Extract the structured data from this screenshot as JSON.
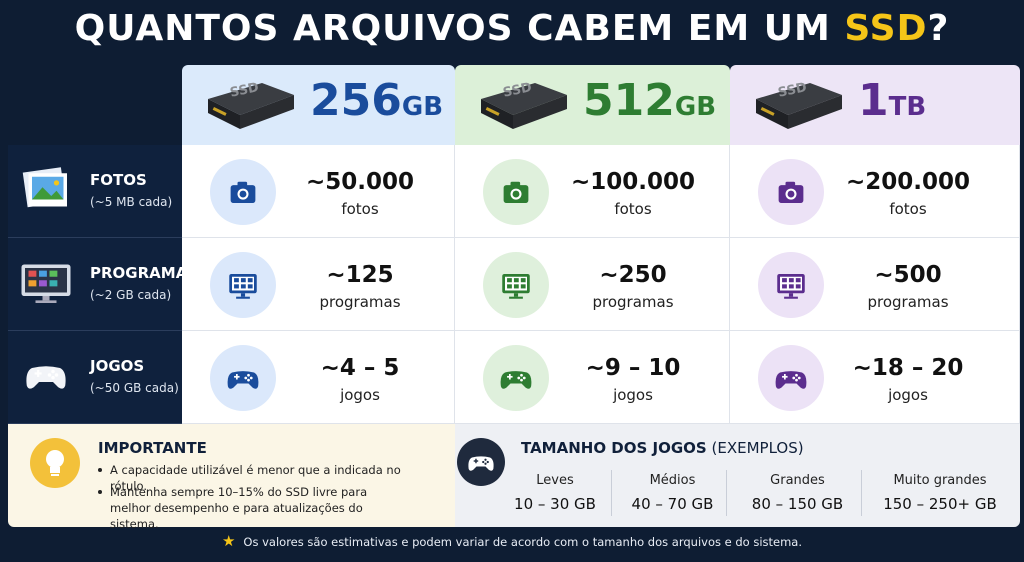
{
  "title": {
    "prefix": "QUANTOS ARQUIVOS CABEM EM UM",
    "highlight": "SSD",
    "suffix": "?"
  },
  "drive_label": "SSD",
  "columns": [
    {
      "number": "256",
      "unit": "GB"
    },
    {
      "number": "512",
      "unit": "GB"
    },
    {
      "number": "1",
      "unit": "TB"
    }
  ],
  "rows": [
    {
      "label": "FOTOS",
      "note": "(~5 MB cada)",
      "cells": [
        {
          "amount": "~50.000",
          "unit": "fotos"
        },
        {
          "amount": "~100.000",
          "unit": "fotos"
        },
        {
          "amount": "~200.000",
          "unit": "fotos"
        }
      ]
    },
    {
      "label": "PROGRAMAS",
      "note": "(~2 GB cada)",
      "cells": [
        {
          "amount": "~125",
          "unit": "programas"
        },
        {
          "amount": "~250",
          "unit": "programas"
        },
        {
          "amount": "~500",
          "unit": "programas"
        }
      ]
    },
    {
      "label": "JOGOS",
      "note": "(~50 GB cada)",
      "cells": [
        {
          "amount": "~4 – 5",
          "unit": "jogos"
        },
        {
          "amount": "~9 – 10",
          "unit": "jogos"
        },
        {
          "amount": "~18 – 20",
          "unit": "jogos"
        }
      ]
    }
  ],
  "important": {
    "title": "IMPORTANTE",
    "items": [
      "A capacidade utilizável é menor que a indicada no rótulo.",
      "Mantenha sempre 10–15% do SSD livre para melhor desempenho e para atualizações do sistema."
    ]
  },
  "game_sizes": {
    "title": "TAMANHO DOS JOGOS",
    "subtitle": "(EXEMPLOS)",
    "items": [
      {
        "label": "Leves",
        "range": "10 – 30 GB"
      },
      {
        "label": "Médios",
        "range": "40 – 70 GB"
      },
      {
        "label": "Grandes",
        "range": "80 – 150 GB"
      },
      {
        "label": "Muito grandes",
        "range": "150 – 250+ GB"
      }
    ]
  },
  "footer": "Os valores são estimativas e podem variar de acordo com o tamanho dos arquivos e do sistema."
}
